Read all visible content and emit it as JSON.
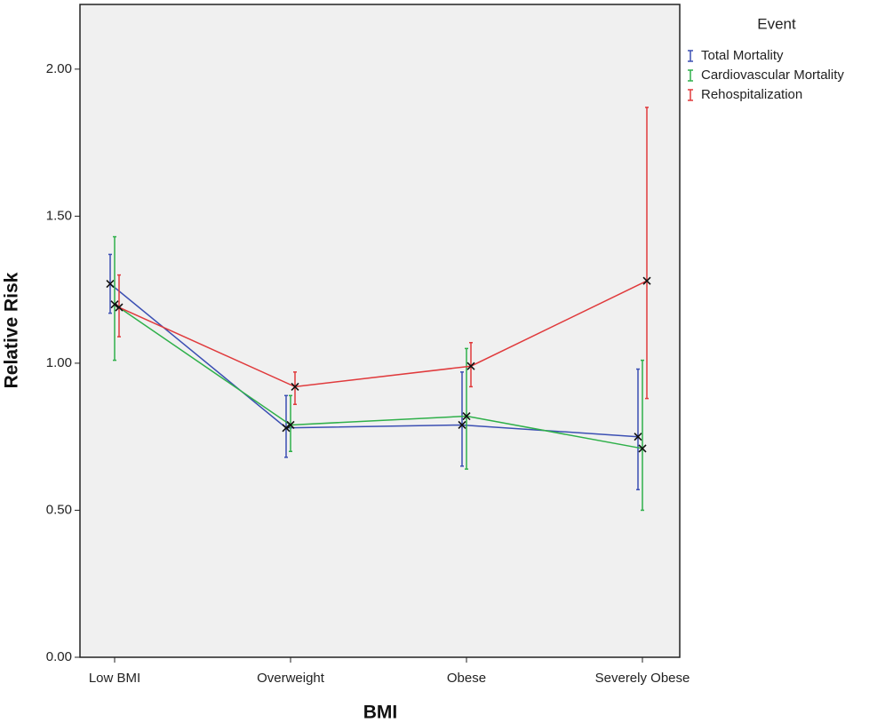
{
  "chart_data": {
    "type": "line",
    "x_label": "BMI",
    "y_label": "Relative Risk",
    "legend_title": "Event",
    "categories": [
      "Low BMI",
      "Overweight",
      "Obese",
      "Severely Obese"
    ],
    "ylim": [
      0,
      2.22
    ],
    "yticks": [
      {
        "value": 0,
        "label": "0.00"
      },
      {
        "value": 0.5,
        "label": "0.50"
      },
      {
        "value": 1,
        "label": "1.00"
      },
      {
        "value": 1.5,
        "label": "1.50"
      },
      {
        "value": 2,
        "label": "2.00"
      }
    ],
    "series": [
      {
        "name": "Total Mortality",
        "color": "#3b4fb3",
        "values": [
          1.27,
          0.78,
          0.79,
          0.75
        ],
        "lower": [
          1.17,
          0.68,
          0.65,
          0.57
        ],
        "upper": [
          1.37,
          0.89,
          0.97,
          0.98
        ]
      },
      {
        "name": "Cardiovascular Mortality",
        "color": "#2fb04a",
        "values": [
          1.2,
          0.79,
          0.82,
          0.71
        ],
        "lower": [
          1.01,
          0.7,
          0.64,
          0.5
        ],
        "upper": [
          1.43,
          0.89,
          1.05,
          1.01
        ]
      },
      {
        "name": "Rehospitalization",
        "color": "#e03a3c",
        "values": [
          1.19,
          0.92,
          0.99,
          1.28
        ],
        "lower": [
          1.09,
          0.86,
          0.92,
          0.88
        ],
        "upper": [
          1.3,
          0.97,
          1.07,
          1.87
        ]
      }
    ]
  }
}
